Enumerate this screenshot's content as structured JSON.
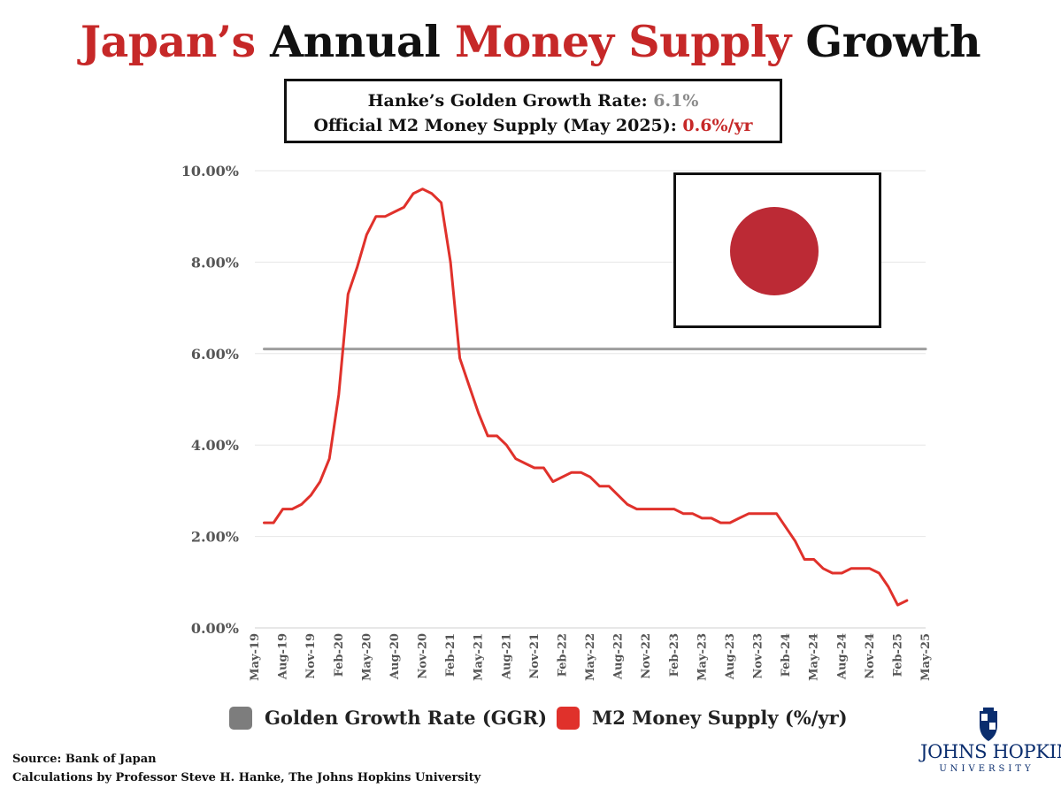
{
  "title": {
    "part1": "Japan’s",
    "part2": " Annual ",
    "part3": "Money Supply",
    "part4": " Growth"
  },
  "info": {
    "line1_label": "Hanke’s Golden Growth Rate: ",
    "line1_value": "6.1%",
    "line2_label": "Official M2 Money Supply (May 2025): ",
    "line2_value": "0.6%/yr"
  },
  "legend": {
    "ggr": "Golden Growth Rate (GGR)",
    "m2": "M2 Money Supply (%/yr)"
  },
  "footer": {
    "source": "Source: Bank of Japan",
    "calc": "Calculations by Professor Steve H. Hanke, The Johns Hopkins University"
  },
  "logo": {
    "name": "JOHNS HOPKINS",
    "sub": "UNIVERSITY"
  },
  "colors": {
    "m2": "#e0312b",
    "ggr": "#9e9e9e",
    "accent": "#c62828",
    "flag_disc": "#bc2a35"
  },
  "chart_data": {
    "type": "line",
    "ylim": [
      0,
      10
    ],
    "yticks": [
      "0.00%",
      "2.00%",
      "4.00%",
      "6.00%",
      "8.00%",
      "10.00%"
    ],
    "xticks": [
      "May-19",
      "Aug-19",
      "Nov-19",
      "Feb-20",
      "May-20",
      "Aug-20",
      "Nov-20",
      "Feb-21",
      "May-21",
      "Aug-21",
      "Nov-21",
      "Feb-22",
      "May-22",
      "Aug-22",
      "Nov-22",
      "Feb-23",
      "May-23",
      "Aug-23",
      "Nov-23",
      "Feb-24",
      "May-24",
      "Aug-24",
      "Nov-24",
      "Feb-25",
      "May-25"
    ],
    "series": [
      {
        "name": "Golden Growth Rate (GGR)",
        "start_month_index": 1,
        "values": [
          6.1,
          6.1
        ]
      },
      {
        "name": "M2 Money Supply (%/yr)",
        "start_month_index": 1,
        "values": [
          2.3,
          2.3,
          2.6,
          2.6,
          2.7,
          2.9,
          3.2,
          3.7,
          5.1,
          7.3,
          7.9,
          8.6,
          9.0,
          9.0,
          9.1,
          9.2,
          9.5,
          9.6,
          9.5,
          9.3,
          8.0,
          5.9,
          5.3,
          4.7,
          4.2,
          4.2,
          4.0,
          3.7,
          3.6,
          3.5,
          3.5,
          3.2,
          3.3,
          3.4,
          3.4,
          3.3,
          3.1,
          3.1,
          2.9,
          2.7,
          2.6,
          2.6,
          2.6,
          2.6,
          2.6,
          2.5,
          2.5,
          2.4,
          2.4,
          2.3,
          2.3,
          2.4,
          2.5,
          2.5,
          2.5,
          2.5,
          2.2,
          1.9,
          1.5,
          1.5,
          1.3,
          1.2,
          1.2,
          1.3,
          1.3,
          1.3,
          1.2,
          0.9,
          0.5,
          0.6
        ]
      }
    ],
    "title": "Japan’s Annual Money Supply Growth",
    "xlabel": "",
    "ylabel": ""
  }
}
